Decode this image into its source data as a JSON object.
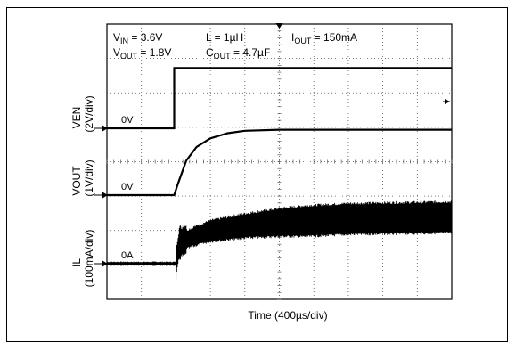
{
  "chart_data": {
    "type": "line",
    "title": "",
    "xlabel": "Time (400µs/div)",
    "x_divisions": 10,
    "y_divisions": 8,
    "conditions": [
      {
        "base": "V",
        "sub": "IN",
        "rest": " = 3.6V"
      },
      {
        "base": "V",
        "sub": "OUT",
        "rest": " = 1.8V"
      },
      {
        "base": "L = 1µH",
        "sub": "",
        "rest": ""
      },
      {
        "base": "C",
        "sub": "OUT",
        "rest": " = 4.7µF"
      },
      {
        "base": "I",
        "sub": "OUT",
        "rest": " = 150mA"
      }
    ],
    "channels": [
      {
        "name": "VEN",
        "scale": "(2V/div)",
        "zero_label": "0V"
      },
      {
        "name": "VOUT",
        "scale": "(1V/div)",
        "zero_label": "0V"
      },
      {
        "name": "IL",
        "scale": "(100mA/div)",
        "zero_label": "0A"
      }
    ],
    "series": [
      {
        "name": "VEN",
        "unit": "div",
        "points": [
          [
            0,
            0
          ],
          [
            1.95,
            0
          ],
          [
            1.95,
            1.75
          ],
          [
            10,
            1.75
          ]
        ]
      },
      {
        "name": "VOUT",
        "unit": "div",
        "points": [
          [
            0,
            0
          ],
          [
            1.95,
            0
          ],
          [
            2.05,
            0.3
          ],
          [
            2.3,
            1.0
          ],
          [
            2.6,
            1.4
          ],
          [
            3.0,
            1.65
          ],
          [
            3.5,
            1.8
          ],
          [
            4.0,
            1.87
          ],
          [
            5.0,
            1.9
          ],
          [
            10,
            1.9
          ]
        ]
      },
      {
        "name": "IL",
        "unit": "div",
        "ripple": true,
        "points": [
          [
            0,
            0
          ],
          [
            2.0,
            0
          ],
          [
            2.1,
            0.6
          ],
          [
            2.3,
            0.7
          ],
          [
            2.6,
            0.82
          ],
          [
            3.0,
            0.95
          ],
          [
            4.0,
            1.1
          ],
          [
            5.0,
            1.2
          ],
          [
            7.0,
            1.3
          ],
          [
            10,
            1.35
          ]
        ]
      }
    ]
  }
}
